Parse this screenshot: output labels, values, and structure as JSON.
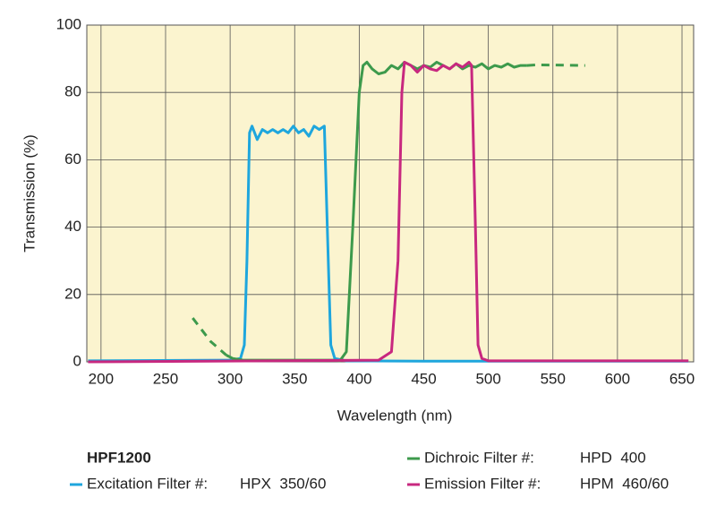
{
  "chart_data": {
    "type": "line",
    "legend_title": "HPF1200",
    "x_label": "Wavelength (nm)",
    "y_label": "Transmission (%)",
    "xlim": [
      189,
      659
    ],
    "ylim": [
      0,
      100
    ],
    "xticks": [
      200,
      250,
      300,
      350,
      400,
      450,
      500,
      550,
      600,
      650
    ],
    "yticks": [
      0,
      20,
      40,
      60,
      80,
      100
    ],
    "grid": true,
    "background": "#fbf4cf",
    "series": [
      {
        "name": "Excitation Filter #:",
        "filter": "HPX  350/60",
        "color": "#1ea6dd",
        "x": [
          190,
          300,
          308,
          311,
          313,
          315,
          317,
          321,
          325,
          329,
          333,
          337,
          341,
          345,
          349,
          353,
          357,
          361,
          365,
          369,
          373,
          376,
          378,
          381,
          390,
          450,
          655
        ],
        "values": [
          0.3,
          0.5,
          1,
          5,
          30,
          68,
          70,
          66,
          69,
          68,
          69,
          68,
          69,
          68,
          70,
          68,
          69,
          67,
          70,
          69,
          70,
          30,
          5,
          1,
          0.3,
          0.2,
          0.2
        ]
      },
      {
        "name": "Dichroic Filter #:",
        "filter": "HPD  400",
        "color": "#3d9a4c",
        "dashed_x_ranges": [
          [
            271,
            302
          ],
          [
            538,
            575
          ]
        ],
        "x": [
          271,
          285,
          297,
          302,
          310,
          380,
          385,
          390,
          395,
          400,
          403,
          406,
          410,
          415,
          420,
          425,
          430,
          435,
          440,
          445,
          450,
          455,
          460,
          465,
          470,
          475,
          480,
          485,
          490,
          495,
          500,
          505,
          510,
          515,
          520,
          525,
          530,
          538,
          575
        ],
        "values": [
          13,
          6,
          2,
          1,
          0.5,
          0.5,
          0.3,
          3,
          40,
          80,
          88,
          89,
          87,
          85.5,
          86,
          88,
          87,
          89,
          88,
          87,
          88,
          87.5,
          89,
          88,
          87,
          88.5,
          87,
          88,
          87.5,
          88.5,
          87,
          88,
          87.5,
          88.5,
          87.5,
          88,
          88,
          88.2,
          88
        ]
      },
      {
        "name": "Emission Filter #:",
        "filter": "HPM  460/60",
        "color": "#c8287f",
        "x": [
          190,
          415,
          425,
          430,
          433,
          435,
          440,
          445,
          450,
          455,
          460,
          465,
          470,
          475,
          480,
          485,
          487,
          490,
          492,
          495,
          500,
          655
        ],
        "values": [
          0,
          0.5,
          3,
          30,
          80,
          89,
          88,
          86,
          88,
          87,
          86.5,
          88,
          87,
          88.5,
          87.5,
          89,
          88,
          40,
          5,
          1,
          0.3,
          0.3
        ]
      }
    ]
  }
}
